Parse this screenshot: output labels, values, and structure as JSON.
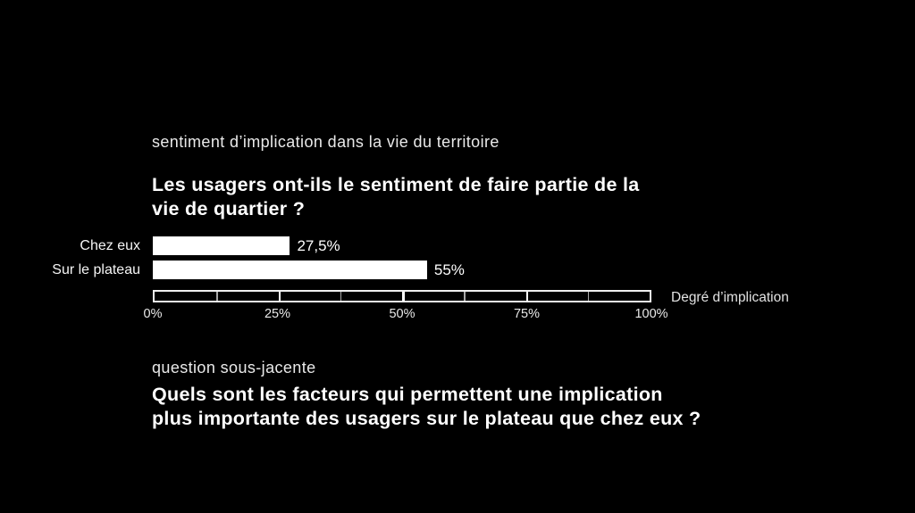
{
  "slide": {
    "section_label": "sentiment d’implication dans la vie du territoire",
    "main_question": {
      "line1": "Les usagers ont-ils le sentiment de faire partie de la",
      "line2": "vie de quartier ?"
    },
    "sub_section_label": "question sous-jacente",
    "sub_question": {
      "line1": "Quels sont les facteurs qui permettent une implication",
      "line2": "plus importante des usagers sur le plateau que chez eux ?"
    }
  },
  "chart_data": {
    "type": "bar",
    "orientation": "horizontal",
    "categories": [
      "Chez eux",
      "Sur le plateau"
    ],
    "values": [
      27.5,
      55
    ],
    "value_labels": [
      "27,5%",
      "55%"
    ],
    "xlabel": "Degré d’implication",
    "xlim": [
      0,
      100
    ],
    "tick_labels": [
      "0%",
      "25%",
      "50%",
      "75%",
      "100%"
    ],
    "tick_positions": [
      0,
      25,
      50,
      75,
      100
    ],
    "minor_tick_positions": [
      12.5,
      37.5,
      62.5,
      87.5
    ],
    "legend": "none",
    "grid": "off",
    "bar_color": "#ffffff",
    "background_color": "#000000",
    "text_color": "#ffffff"
  }
}
